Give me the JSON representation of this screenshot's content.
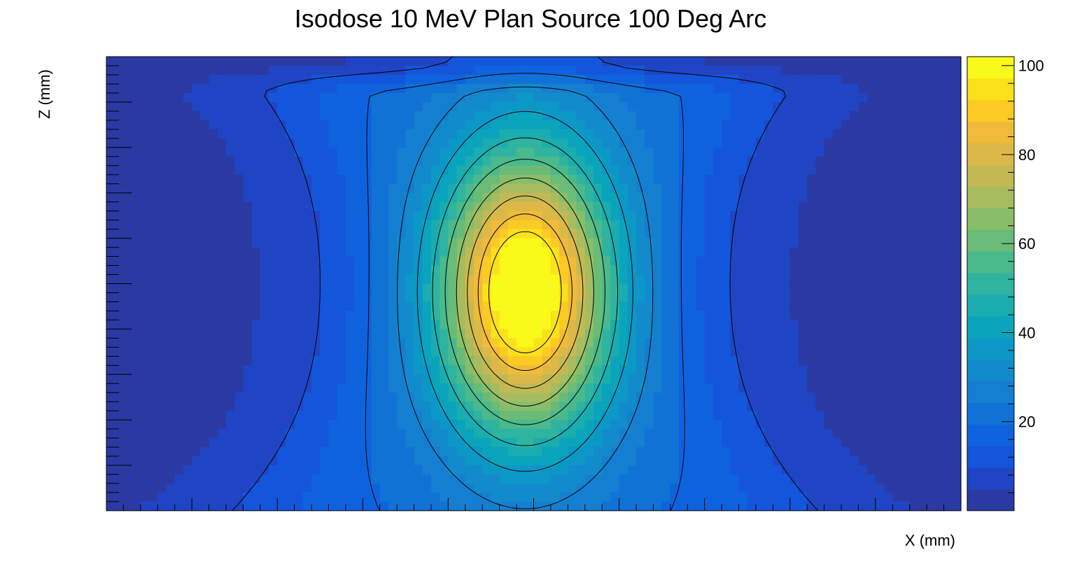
{
  "chart_data": {
    "type": "heatmap",
    "title": "Isodose 10 MeV Plan Source  100 Deg Arc",
    "xlabel": "X (mm)",
    "ylabel": "Z (mm)",
    "colorbar": {
      "range": [
        0,
        102
      ],
      "ticks": [
        20,
        40,
        60,
        80,
        100
      ],
      "tick_labels": [
        "20",
        "40",
        "60",
        "80",
        "100"
      ],
      "levels": 20,
      "palette": [
        "#2a3aa2",
        "#1f45c4",
        "#1456db",
        "#0f62de",
        "#1172d5",
        "#147fd0",
        "#128bcc",
        "#0c98c6",
        "#0aa5bd",
        "#1aadb0",
        "#2fb4a0",
        "#4ab98c",
        "#68bc78",
        "#88bd6a",
        "#a7bc5f",
        "#c3b954",
        "#dcb848",
        "#f0bb38",
        "#fbcb23",
        "#fae11a",
        "#f9f91a"
      ]
    },
    "contours": true,
    "peak": {
      "x": 0.49,
      "z": 0.52,
      "value": 100
    },
    "axis_ticks": "unlabeled",
    "grid": false
  }
}
